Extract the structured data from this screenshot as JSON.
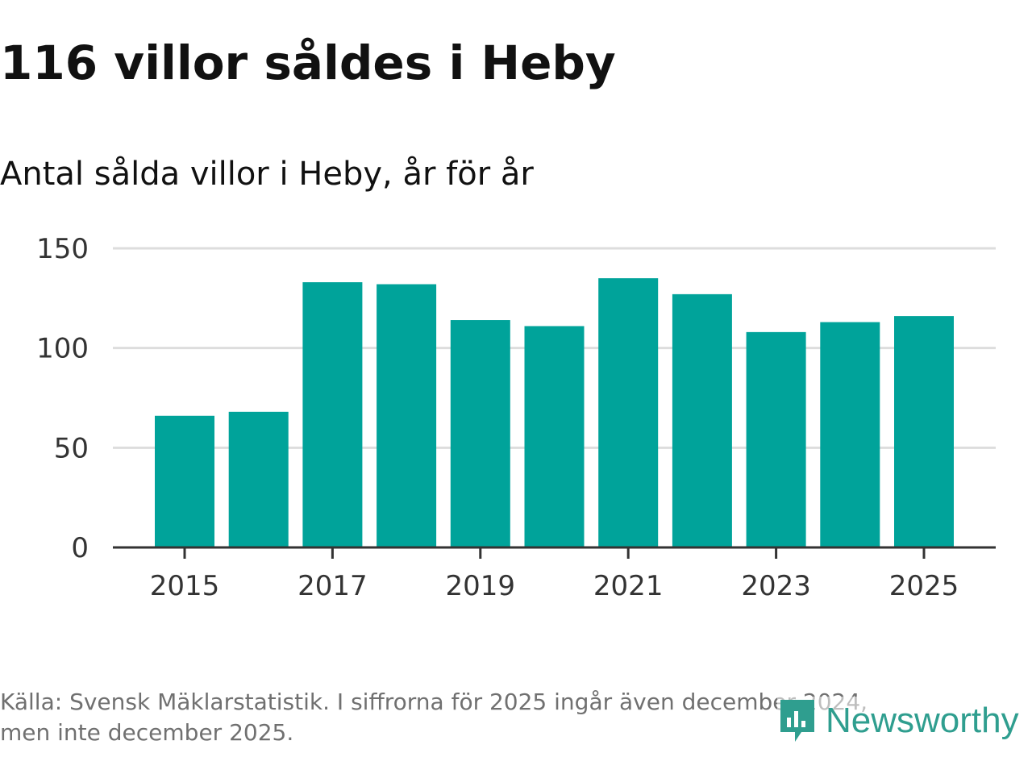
{
  "header": {
    "title": "116 villor såldes i Heby",
    "subtitle": "Antal sålda villor i Heby, år för år"
  },
  "footer": {
    "source_line1": "Källa: Svensk Mäklarstatistik. I siffrorna för 2025 ingår även december 2024,",
    "source_line2": "men inte december 2025."
  },
  "logo": {
    "name": "Newsworthy",
    "icon": "newsworthy-logo-icon"
  },
  "colors": {
    "bar": "#00a39a",
    "grid": "#dddddd",
    "axis": "#333333",
    "logo": "#2f9e8f"
  },
  "chart_data": {
    "type": "bar",
    "title": "Antal sålda villor i Heby, år för år",
    "categories": [
      "2015",
      "2016",
      "2017",
      "2018",
      "2019",
      "2020",
      "2021",
      "2022",
      "2023",
      "2024",
      "2025"
    ],
    "values": [
      66,
      68,
      133,
      132,
      114,
      111,
      135,
      127,
      108,
      113,
      116
    ],
    "xlabel": "",
    "ylabel": "",
    "ylim": [
      0,
      150
    ],
    "yticks": [
      0,
      50,
      100,
      150
    ],
    "xtick_labels": [
      "2015",
      "2017",
      "2019",
      "2021",
      "2023",
      "2025"
    ],
    "grid": true,
    "legend": "none"
  }
}
